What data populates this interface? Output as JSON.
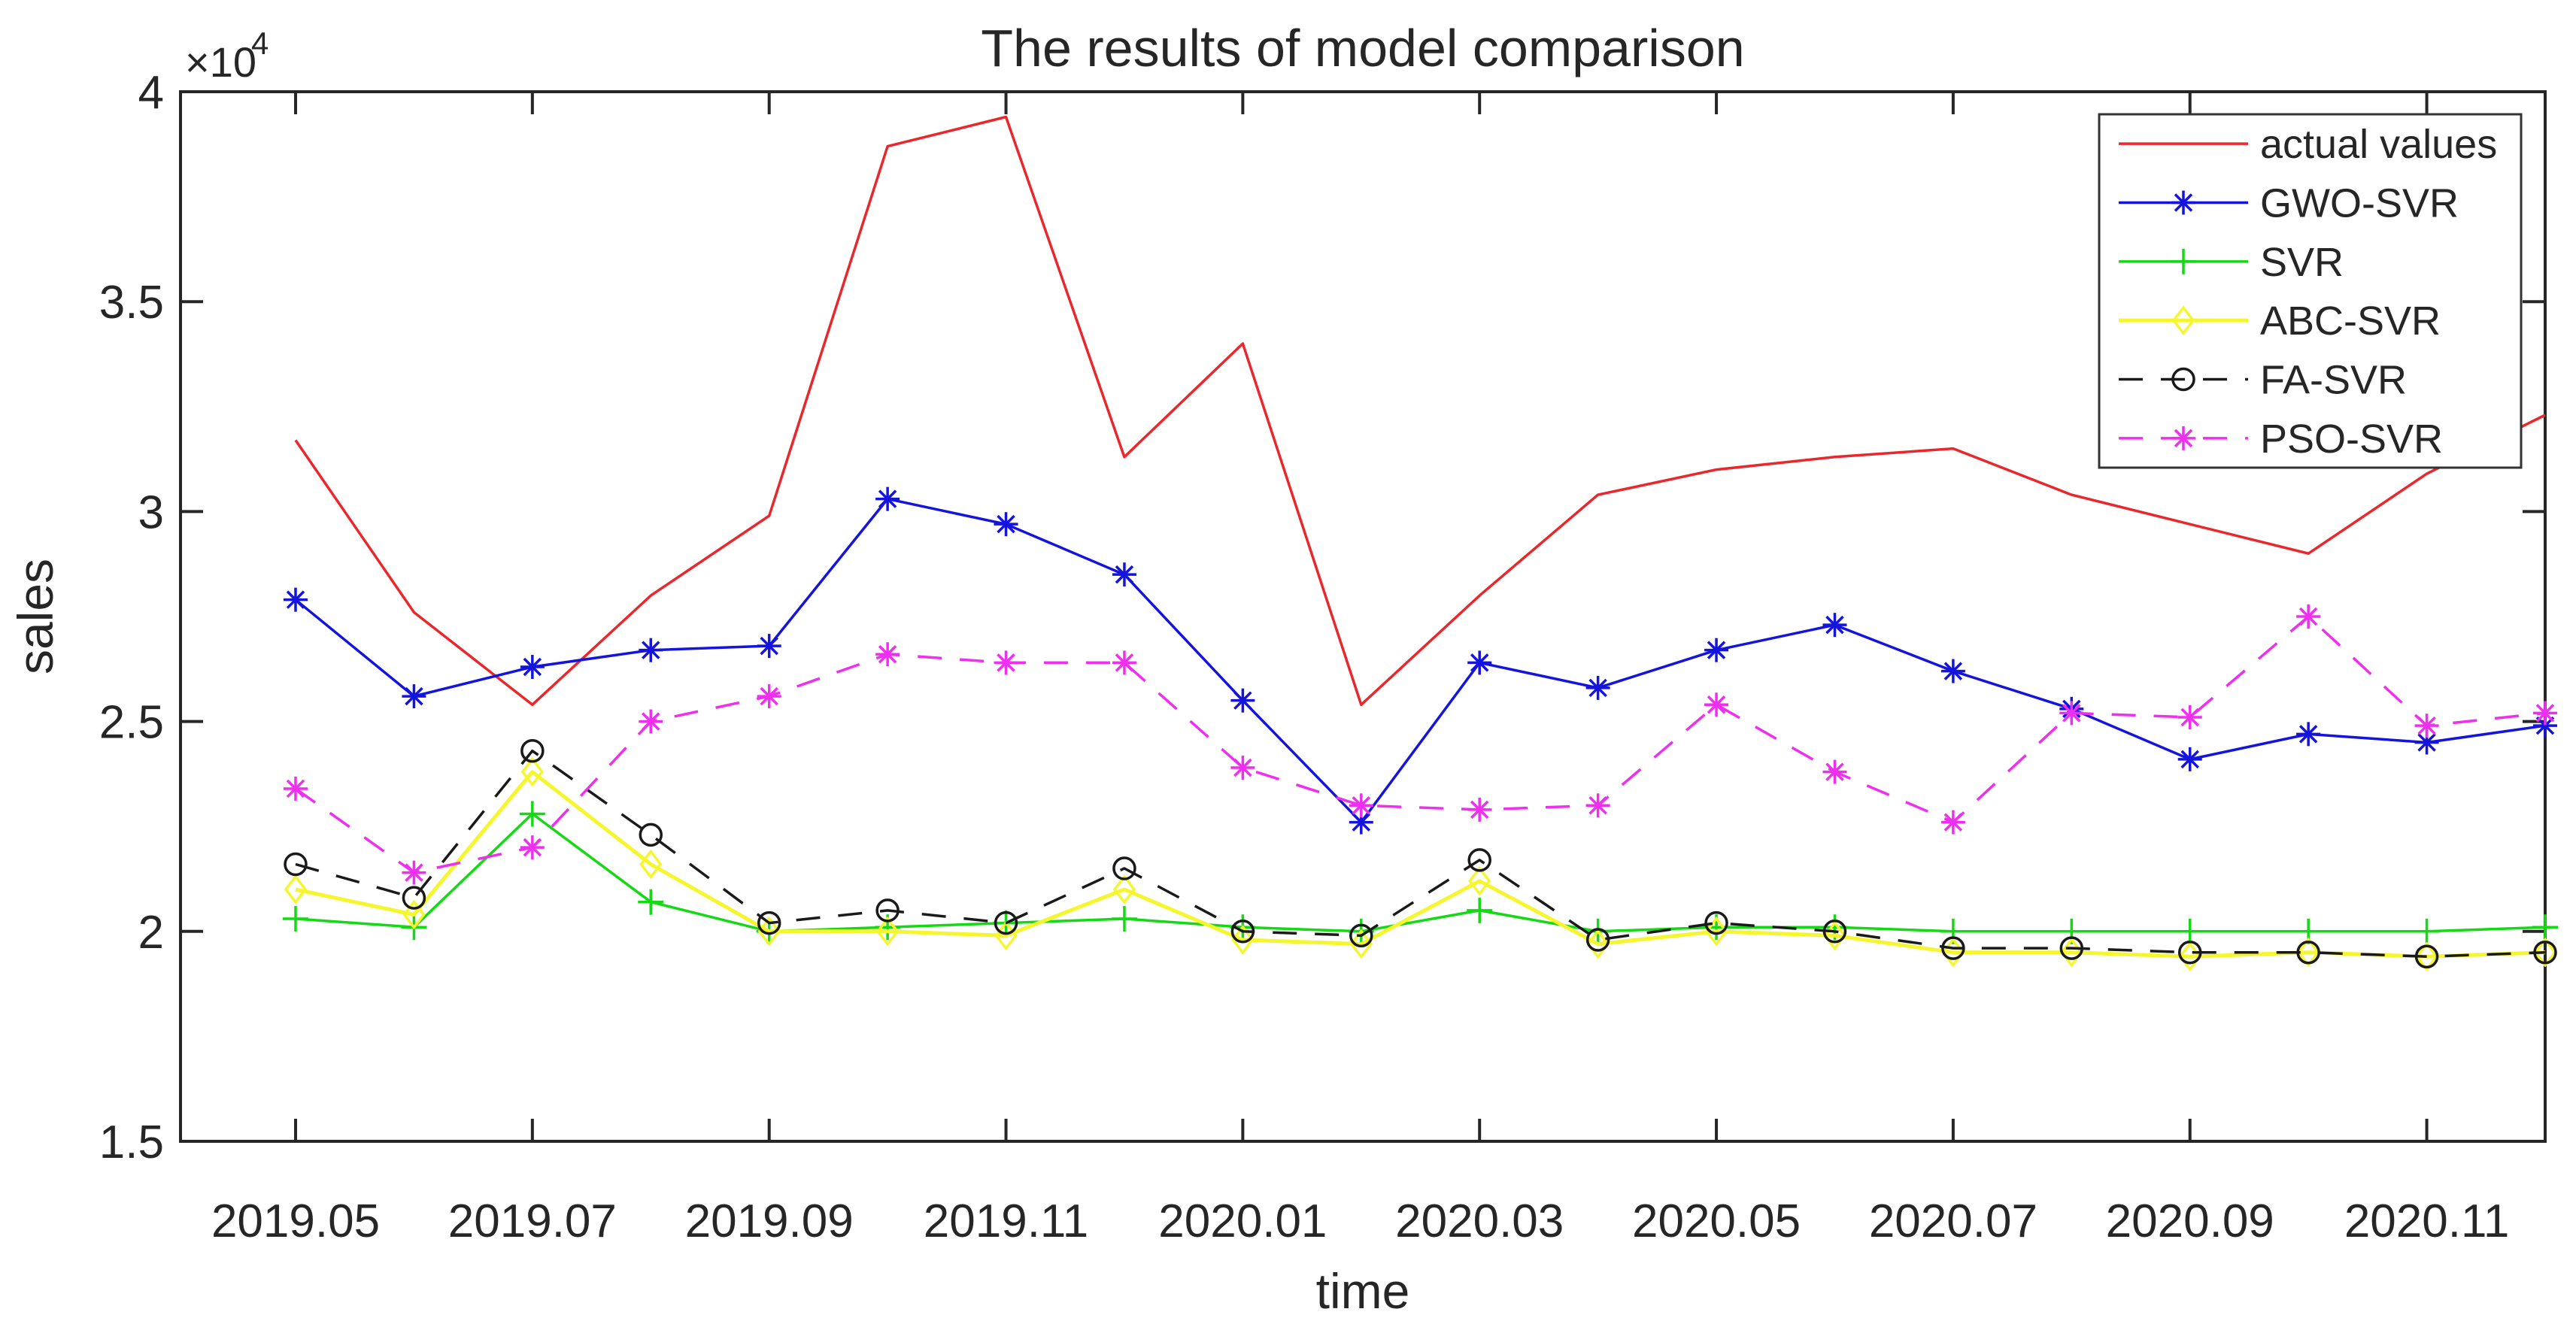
{
  "chart_data": {
    "type": "line",
    "title": "The results of model comparison",
    "xlabel": "time",
    "ylabel": "sales",
    "y_offset_label": {
      "mantissa": "×10",
      "exponent": "4"
    },
    "grid": false,
    "legend_position": "upper-right",
    "ylim": [
      15000,
      40000
    ],
    "y_tick_values": [
      15000,
      20000,
      25000,
      30000,
      35000,
      40000
    ],
    "y_tick_labels": [
      "1.5",
      "2",
      "2.5",
      "3",
      "3.5",
      "4"
    ],
    "categories": [
      "2019.05",
      "2019.06",
      "2019.07",
      "2019.08",
      "2019.09",
      "2019.10",
      "2019.11",
      "2019.12",
      "2020.01",
      "2020.02",
      "2020.03",
      "2020.04",
      "2020.05",
      "2020.06",
      "2020.07",
      "2020.08",
      "2020.09",
      "2020.10",
      "2020.11",
      "2020.12"
    ],
    "x_tick_labels": [
      "2019.05",
      "2019.07",
      "2019.09",
      "2019.11",
      "2020.01",
      "2020.03",
      "2020.05",
      "2020.07",
      "2020.09",
      "2020.11"
    ],
    "axis_color": "#262626",
    "series": [
      {
        "name": "actual values",
        "color": "#e8282d",
        "style": "solid",
        "marker": "none",
        "values": [
          31700,
          27600,
          25400,
          28000,
          29900,
          38700,
          39400,
          31300,
          34000,
          25400,
          28000,
          30400,
          31000,
          31300,
          31500,
          30400,
          29700,
          29000,
          30900,
          32300
        ]
      },
      {
        "name": "GWO-SVR",
        "color": "#1414dd",
        "style": "solid",
        "marker": "asterisk",
        "values": [
          27900,
          25600,
          26300,
          26700,
          26800,
          30300,
          29700,
          28500,
          25500,
          22600,
          26400,
          25800,
          26700,
          27300,
          26200,
          25300,
          24100,
          24700,
          24500,
          24900
        ]
      },
      {
        "name": "SVR",
        "color": "#16d916",
        "style": "solid",
        "marker": "plus",
        "values": [
          20300,
          20100,
          22800,
          20700,
          20000,
          20100,
          20200,
          20300,
          20100,
          20000,
          20500,
          20000,
          20100,
          20100,
          20000,
          20000,
          20000,
          20000,
          20000,
          20100
        ]
      },
      {
        "name": "ABC-SVR",
        "color": "#f6f62f",
        "style": "solid",
        "marker": "diamond",
        "values": [
          21000,
          20400,
          23800,
          21600,
          20000,
          20000,
          19900,
          21000,
          19800,
          19700,
          21200,
          19700,
          20000,
          19900,
          19500,
          19500,
          19400,
          19500,
          19400,
          19500
        ]
      },
      {
        "name": "FA-SVR",
        "color": "#1a1a1a",
        "style": "dashed",
        "marker": "circle",
        "values": [
          21600,
          20800,
          24300,
          22300,
          20200,
          20500,
          20200,
          21500,
          20000,
          19900,
          21700,
          19800,
          20200,
          20000,
          19600,
          19600,
          19500,
          19500,
          19400,
          19500
        ]
      },
      {
        "name": "PSO-SVR",
        "color": "#ef2fef",
        "style": "dashed",
        "marker": "asterisk",
        "values": [
          23400,
          21400,
          22000,
          25000,
          25600,
          26600,
          26400,
          26400,
          23900,
          23000,
          22900,
          23000,
          25400,
          23800,
          22600,
          25200,
          25100,
          27500,
          24900,
          25200
        ]
      }
    ]
  }
}
